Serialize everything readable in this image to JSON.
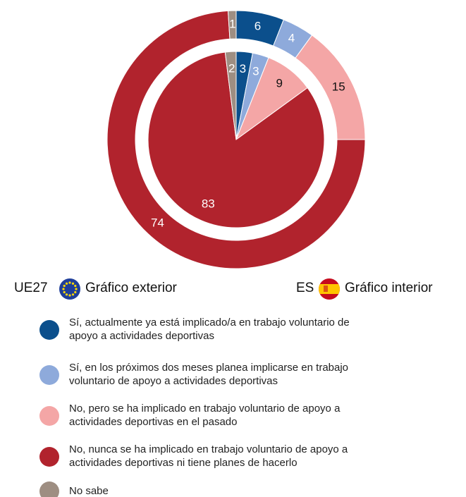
{
  "chart_data": {
    "type": "nested_donut",
    "categories": [
      "Sí, actualmente ya está implicado/a en trabajo voluntario de apoyo a actividades deportivas",
      "Sí, en los próximos dos meses planea implicarse en trabajo voluntario de apoyo a actividades deportivas",
      "No, pero se ha implicado en trabajo voluntario de apoyo a actividades deportivas en el pasado",
      "No, nunca se ha implicado en trabajo voluntario de apoyo a actividades deportivas ni tiene planes de hacerlo",
      "No sabe"
    ],
    "colors": [
      "#0b4f8c",
      "#8eaadb",
      "#f4a6a6",
      "#b1232d",
      "#9e8e82"
    ],
    "series": [
      {
        "name": "UE27",
        "caption": "Gráfico exterior",
        "values": [
          6,
          4,
          15,
          74,
          1
        ]
      },
      {
        "name": "ES",
        "caption": "Gráfico interior",
        "values": [
          3,
          3,
          9,
          83,
          2
        ]
      }
    ]
  }
}
